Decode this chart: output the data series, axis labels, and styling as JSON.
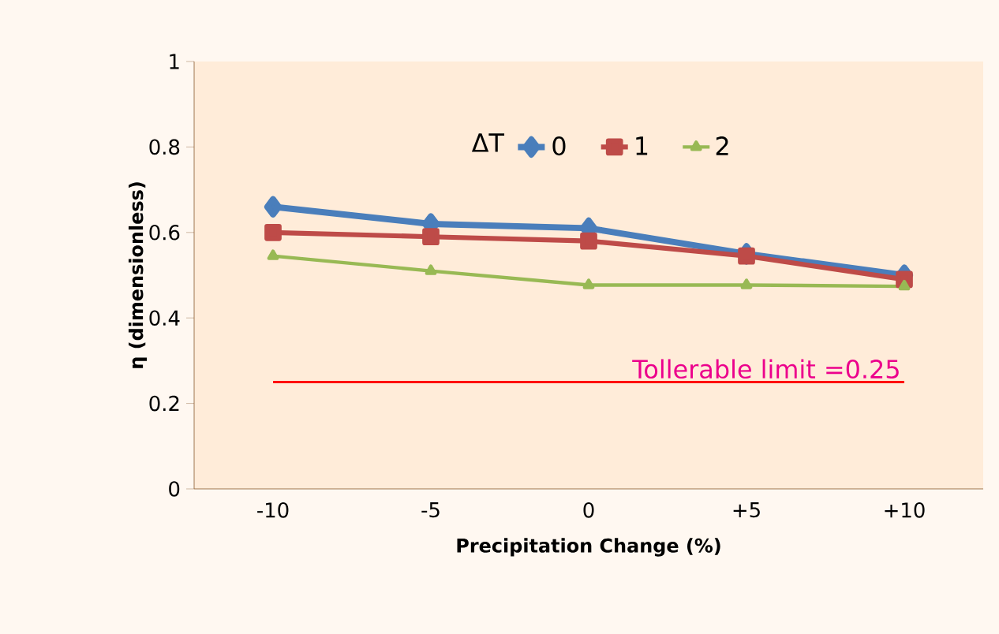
{
  "chart_data": {
    "type": "line",
    "xlabel": "Precipitation Change (%)",
    "ylabel": "η (dimensionless)",
    "legend_title": "ΔT",
    "categories": [
      "-10",
      "-5",
      "0",
      "+5",
      "+10"
    ],
    "series": [
      {
        "name": "0",
        "color": "#4a7ebb",
        "marker": "diamond",
        "values": [
          0.66,
          0.62,
          0.61,
          0.55,
          0.5
        ]
      },
      {
        "name": "1",
        "color": "#be4b48",
        "marker": "square",
        "values": [
          0.6,
          0.59,
          0.58,
          0.545,
          0.49
        ]
      },
      {
        "name": "2",
        "color": "#98b954",
        "marker": "triangle",
        "values": [
          0.545,
          0.51,
          0.477,
          0.477,
          0.474
        ]
      }
    ],
    "ylim": [
      0,
      1
    ],
    "yticks": [
      0,
      {
        "value": 0.2,
        "label": "0.2"
      },
      {
        "value": 0.4,
        "label": "0.4"
      },
      {
        "value": 0.6,
        "label": "0.6"
      },
      {
        "value": 0.8,
        "label": "0.8"
      },
      1
    ],
    "ref_lines": [
      {
        "axis": "y",
        "value": 0.25,
        "label": "Tollerable limit =0.25",
        "color": "#ff0000"
      }
    ],
    "legend": "top right",
    "grid": false
  }
}
